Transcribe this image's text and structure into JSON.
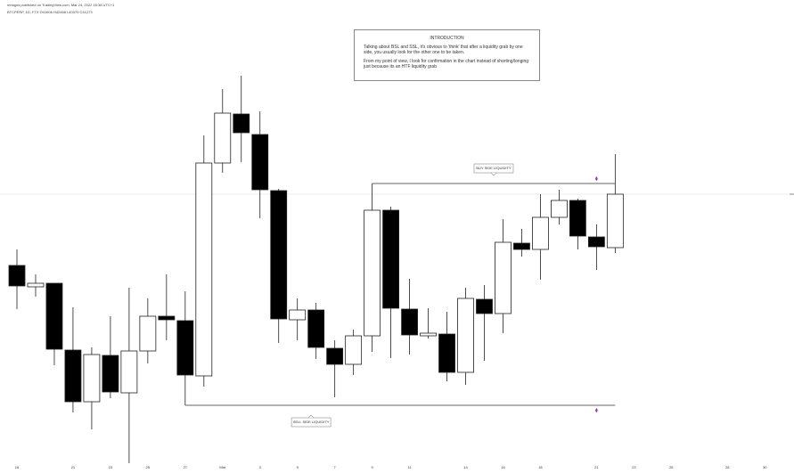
{
  "chart_data": {
    "type": "candlestick",
    "header": [
      "mrlagos published on TradingView.com, Mar 24, 2022 16:38 UTC+1",
      "BTCPERP, 1D, FTX  O41606  H42468  L40075  C41273"
    ],
    "introduction": {
      "title": "INTRODUCTION",
      "paragraphs": [
        "Talking about BSL and SSL, it's obvious to 'think' that after a liquidity grab by one side, you usually look for the other one to be taken.",
        "From my point of view, I look for confirmation in the chart instead of shorting/longing just because its an HTF liquidity grab"
      ]
    },
    "categories": [
      "18",
      null,
      null,
      "21",
      null,
      "23",
      null,
      "25",
      null,
      "27",
      null,
      "Mar",
      null,
      "3",
      null,
      "5",
      null,
      "7",
      null,
      "9",
      null,
      "11",
      null,
      null,
      "14",
      null,
      "16",
      null,
      "18",
      null,
      null,
      "21",
      null,
      "23",
      null,
      "25",
      null,
      null,
      "28",
      null,
      "30"
    ],
    "open": [
      222,
      198,
      202,
      127,
      69,
      121,
      79,
      126,
      165,
      160,
      98,
      337,
      392,
      369,
      306,
      161,
      172,
      129,
      111,
      143,
      284,
      173,
      143,
      145,
      102,
      184,
      168,
      247,
      240,
      276,
      295,
      254,
      242,
      null,
      null,
      null,
      null,
      null,
      null,
      null,
      null
    ],
    "high": [
      240,
      212,
      202,
      175,
      130,
      165,
      197,
      185,
      212,
      193,
      368,
      420,
      435,
      395,
      308,
      185,
      180,
      138,
      150,
      314,
      288,
      207,
      174,
      170,
      197,
      200,
      274,
      263,
      302,
      307,
      297,
      268,
      347,
      null,
      null,
      null,
      null,
      null,
      null,
      null,
      null
    ],
    "low": [
      173,
      187,
      110,
      57,
      38,
      73,
      0,
      112,
      138,
      65,
      86,
      326,
      338,
      275,
      135,
      138,
      117,
      74,
      99,
      125,
      118,
      122,
      140,
      92,
      88,
      115,
      146,
      232,
      206,
      268,
      240,
      217,
      236,
      null,
      null,
      null,
      null,
      null,
      null,
      null,
      null
    ],
    "close": [
      199,
      202,
      128,
      69,
      122,
      80,
      126,
      165,
      161,
      99,
      337,
      393,
      371,
      307,
      162,
      172,
      130,
      111,
      143,
      284,
      174,
      144,
      146,
      102,
      185,
      168,
      248,
      240,
      276,
      295,
      255,
      243,
      302,
      null,
      null,
      null,
      null,
      null,
      null,
      null,
      null
    ],
    "up_color": "#ffffff",
    "down_color": "#000000",
    "line_color": "#222222",
    "ylim": [
      0,
      520
    ],
    "levels": [
      {
        "label": "BUY SIDE LIQUIDITY",
        "value": 314,
        "kind": "high"
      },
      {
        "label": "SELL SIDE LIQUIDITY",
        "value": 65,
        "kind": "low"
      }
    ]
  }
}
